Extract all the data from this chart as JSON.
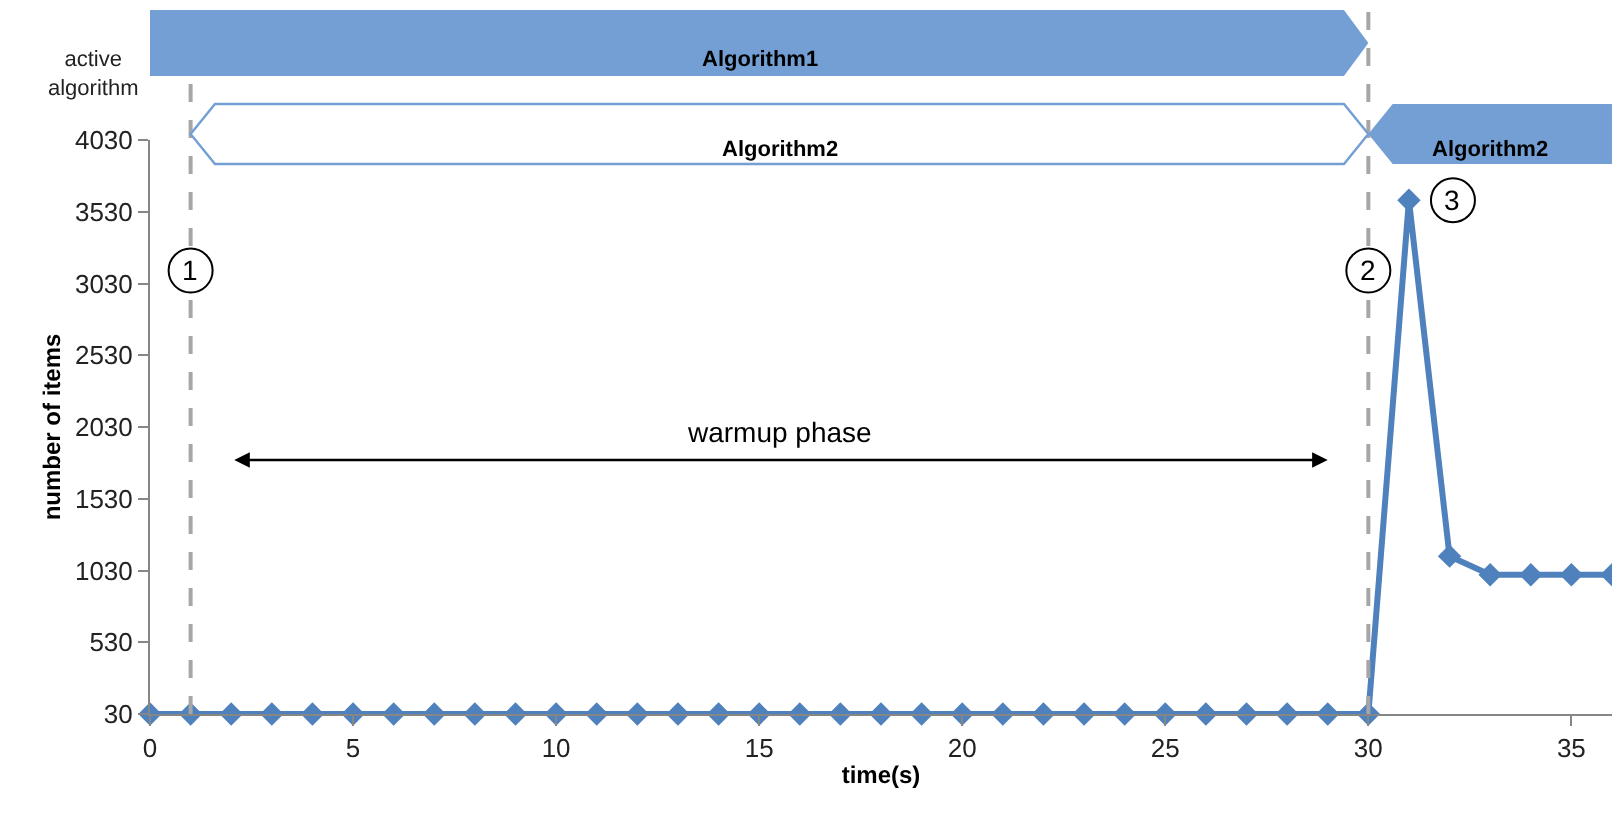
{
  "chart_data": {
    "type": "line",
    "xlabel": "time(s)",
    "ylabel": "number of items",
    "x": [
      0,
      1,
      2,
      3,
      4,
      5,
      6,
      7,
      8,
      9,
      10,
      11,
      12,
      13,
      14,
      15,
      16,
      17,
      18,
      19,
      20,
      21,
      22,
      23,
      24,
      25,
      26,
      27,
      28,
      29,
      30,
      31,
      32,
      33,
      34,
      35,
      36
    ],
    "series": [
      {
        "color": "#4f81bd",
        "values": [
          30,
          30,
          30,
          30,
          30,
          30,
          30,
          30,
          30,
          30,
          30,
          30,
          30,
          30,
          30,
          30,
          30,
          30,
          30,
          30,
          30,
          30,
          30,
          30,
          30,
          30,
          30,
          30,
          30,
          30,
          30,
          3610,
          1130,
          1000,
          1000,
          1000,
          1000
        ]
      }
    ],
    "marker": "diamond",
    "line_style": "solid",
    "xlim": [
      0,
      36
    ],
    "xticks": [
      0,
      5,
      10,
      15,
      20,
      25,
      30,
      35
    ],
    "ylim": [
      30,
      4030
    ],
    "yticks": [
      30,
      530,
      1030,
      1530,
      2030,
      2530,
      3030,
      3530,
      4030
    ],
    "ref_lines": [
      {
        "axis": "x",
        "value": 1,
        "label": null,
        "color": "#a6a6a6",
        "line_style": "dashed"
      },
      {
        "axis": "x",
        "value": 30,
        "label": null,
        "color": "#a6a6a6",
        "line_style": "dashed"
      }
    ],
    "bands": [
      {
        "axis": "x",
        "from": 1,
        "to": 30,
        "label": "Algorithm2",
        "color": "#ffffff"
      },
      {
        "axis": "x",
        "from": 30,
        "to": 36,
        "label": "Algorithm2",
        "color": "#739fd4"
      }
    ],
    "annotations": [
      "active algorithm",
      "Algorithm1",
      "warmup phase",
      {
        "text": "1",
        "x": 1,
        "y": 3120
      },
      {
        "text": "2",
        "x": 30,
        "y": 3120
      },
      {
        "text": "3",
        "x": 31,
        "y": 3610
      }
    ]
  }
}
